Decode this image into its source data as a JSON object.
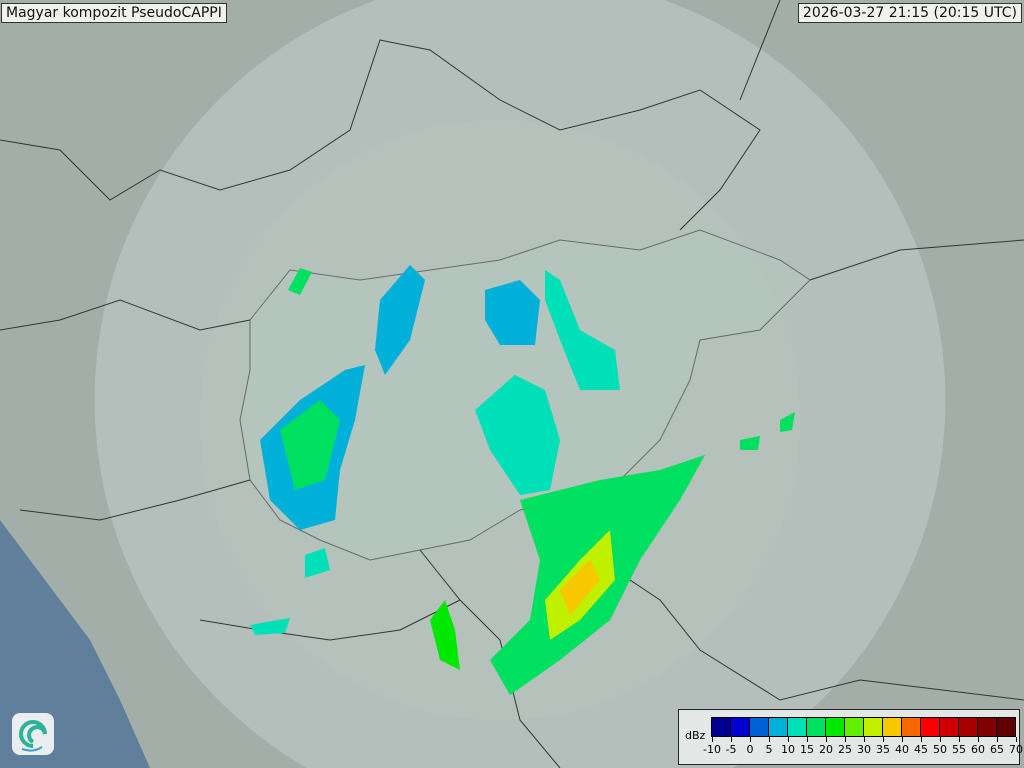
{
  "header": {
    "title": "Magyar kompozit  PseudoCAPPI",
    "timestamp": "2026-03-27 21:15 (20:15 UTC)"
  },
  "logo": {
    "icon": "swirl-logo-icon"
  },
  "legend": {
    "unit": "dBz",
    "ticks": [
      "-10",
      "-5",
      "0",
      "5",
      "10",
      "15",
      "20",
      "25",
      "30",
      "35",
      "40",
      "45",
      "50",
      "55",
      "60",
      "65",
      "70"
    ],
    "colors": [
      "#000090",
      "#0000d0",
      "#0060d8",
      "#00b0d8",
      "#00e0b8",
      "#00e060",
      "#00e800",
      "#60f000",
      "#c0f000",
      "#f8c800",
      "#f86800",
      "#f80000",
      "#d00000",
      "#a80000",
      "#800000",
      "#600000"
    ]
  },
  "map": {
    "land_color": "#a3aea9",
    "coverage_color": "#c4d0cc",
    "sea_color": "#5f7f9c",
    "border_color": "#333333"
  }
}
